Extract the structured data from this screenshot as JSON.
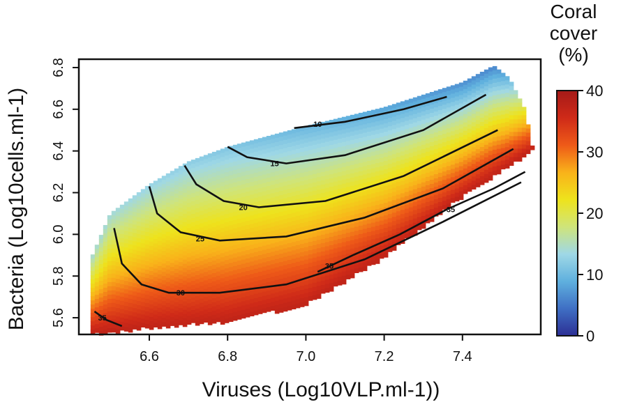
{
  "chart_data": {
    "type": "heatmap",
    "xlabel": "Viruses (Log10VLP.ml-1))",
    "ylabel": "Bacteria (Log10cells.ml-1)",
    "x_ticks": [
      "6.6",
      "6.8",
      "7.0",
      "7.2",
      "7.4"
    ],
    "y_ticks": [
      "5.6",
      "5.8",
      "6.0",
      "6.2",
      "6.4",
      "6.6",
      "6.8"
    ],
    "xlim": [
      6.42,
      7.6
    ],
    "ylim": [
      5.52,
      6.84
    ],
    "colorbar": {
      "title_lines": [
        "Coral",
        "cover",
        "(%)"
      ],
      "ticks": [
        "0",
        "10",
        "20",
        "30",
        "40"
      ],
      "range": [
        0,
        40
      ],
      "colors": [
        "#2c2f94",
        "#3f6fc4",
        "#5fb0de",
        "#9fd8e6",
        "#cfe47a",
        "#eee31c",
        "#f9b21a",
        "#ee5a18",
        "#cf2a18",
        "#a51a18"
      ]
    },
    "region": {
      "upper_boundary": [
        [
          6.45,
          5.88
        ],
        [
          6.5,
          6.1
        ],
        [
          6.6,
          6.24
        ],
        [
          6.7,
          6.35
        ],
        [
          6.8,
          6.42
        ],
        [
          7.0,
          6.52
        ],
        [
          7.2,
          6.61
        ],
        [
          7.4,
          6.73
        ],
        [
          7.48,
          6.81
        ]
      ],
      "lower_boundary": [
        [
          6.45,
          5.53
        ],
        [
          6.6,
          5.56
        ],
        [
          6.8,
          5.59
        ],
        [
          7.0,
          5.67
        ],
        [
          7.2,
          5.9
        ],
        [
          7.4,
          6.19
        ],
        [
          7.58,
          6.41
        ]
      ],
      "right_edge": [
        [
          7.48,
          6.81
        ],
        [
          7.52,
          6.75
        ],
        [
          7.56,
          6.6
        ],
        [
          7.58,
          6.41
        ]
      ]
    },
    "contours": [
      {
        "level": "10",
        "points": [
          [
            6.97,
            6.51
          ],
          [
            7.1,
            6.54
          ],
          [
            7.25,
            6.6
          ],
          [
            7.36,
            6.66
          ]
        ]
      },
      {
        "level": "15",
        "points": [
          [
            6.8,
            6.42
          ],
          [
            6.85,
            6.37
          ],
          [
            6.95,
            6.34
          ],
          [
            7.1,
            6.38
          ],
          [
            7.3,
            6.5
          ],
          [
            7.46,
            6.67
          ]
        ]
      },
      {
        "level": "20",
        "points": [
          [
            6.69,
            6.33
          ],
          [
            6.72,
            6.24
          ],
          [
            6.79,
            6.16
          ],
          [
            6.88,
            6.13
          ],
          [
            7.05,
            6.16
          ],
          [
            7.25,
            6.28
          ],
          [
            7.49,
            6.5
          ]
        ]
      },
      {
        "level": "25",
        "points": [
          [
            6.6,
            6.23
          ],
          [
            6.62,
            6.1
          ],
          [
            6.68,
            6.01
          ],
          [
            6.78,
            5.97
          ],
          [
            6.95,
            5.99
          ],
          [
            7.15,
            6.08
          ],
          [
            7.35,
            6.22
          ],
          [
            7.53,
            6.41
          ]
        ]
      },
      {
        "level": "30",
        "points": [
          [
            6.51,
            6.03
          ],
          [
            6.53,
            5.86
          ],
          [
            6.58,
            5.76
          ],
          [
            6.65,
            5.72
          ],
          [
            6.78,
            5.72
          ],
          [
            6.95,
            5.76
          ],
          [
            7.15,
            5.88
          ],
          [
            7.35,
            6.06
          ],
          [
            7.55,
            6.25
          ]
        ]
      },
      {
        "level": "35",
        "points": [
          [
            6.46,
            5.63
          ],
          [
            6.49,
            5.59
          ],
          [
            6.53,
            5.56
          ]
        ]
      },
      {
        "level": "35",
        "points": [
          [
            7.03,
            5.82
          ],
          [
            7.12,
            5.9
          ],
          [
            7.24,
            6.0
          ],
          [
            7.36,
            6.12
          ],
          [
            7.48,
            6.22
          ],
          [
            7.56,
            6.3
          ]
        ]
      }
    ],
    "contour_labels": [
      {
        "text": "10",
        "x": 7.03,
        "y": 6.53
      },
      {
        "text": "15",
        "x": 6.92,
        "y": 6.34
      },
      {
        "text": "20",
        "x": 6.84,
        "y": 6.13
      },
      {
        "text": "25",
        "x": 6.73,
        "y": 5.98
      },
      {
        "text": "30",
        "x": 6.68,
        "y": 5.72
      },
      {
        "text": "35",
        "x": 6.48,
        "y": 5.6
      },
      {
        "text": "35",
        "x": 7.06,
        "y": 5.85
      },
      {
        "text": "35",
        "x": 7.37,
        "y": 6.12
      }
    ]
  }
}
